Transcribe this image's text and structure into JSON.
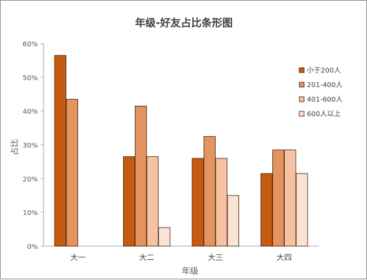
{
  "chart_data": {
    "type": "bar",
    "title": "年级-好友占比条形图",
    "xlabel": "年级",
    "ylabel": "占比",
    "categories": [
      "大一",
      "大二",
      "大三",
      "大四"
    ],
    "ylim": [
      0,
      60
    ],
    "yticks": [
      "0%",
      "10%",
      "20%",
      "30%",
      "40%",
      "50%",
      "60%"
    ],
    "grid": false,
    "legend_position": "right",
    "series": [
      {
        "name": "小于200人",
        "color": "#C55A11",
        "values": [
          56.5,
          26.5,
          26.0,
          21.5
        ]
      },
      {
        "name": "201-400人",
        "color": "#E4945E",
        "values": [
          43.5,
          41.5,
          32.5,
          28.5
        ]
      },
      {
        "name": "401-600人",
        "color": "#F5C3A3",
        "values": [
          null,
          26.5,
          26.0,
          28.5
        ]
      },
      {
        "name": "600人以上",
        "color": "#FBE3D4",
        "values": [
          null,
          5.5,
          15.0,
          21.5
        ]
      }
    ]
  }
}
